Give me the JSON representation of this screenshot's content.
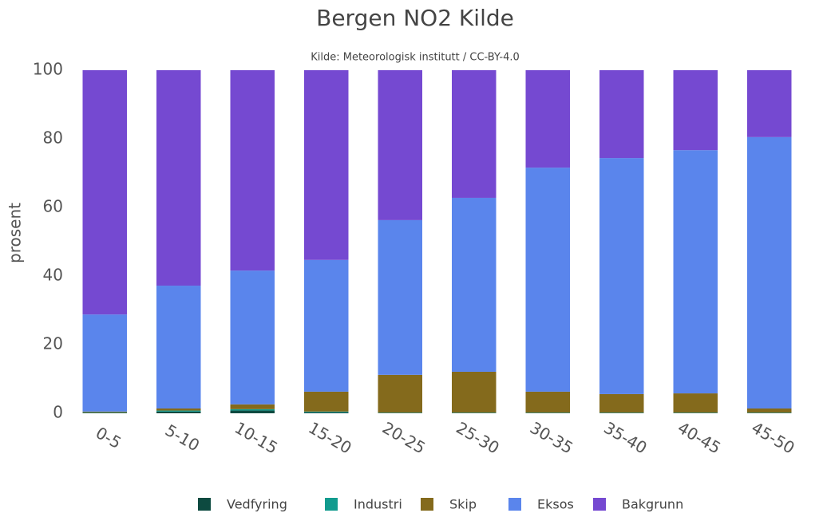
{
  "chart_data": {
    "type": "stacked_bar",
    "title": "Bergen NO2 Kilde",
    "subtitle": "Kilde: Meteorologisk institutt / CC-BY-4.0",
    "ylabel": "prosent",
    "categories": [
      "0-5",
      "5-10",
      "10-15",
      "15-20",
      "20-25",
      "25-30",
      "30-35",
      "35-40",
      "40-45",
      "45-50"
    ],
    "series": [
      {
        "name": "Vedfyring",
        "color": "#0d4a40",
        "values": [
          0.2,
          0.5,
          0.8,
          0.3,
          0.1,
          0.1,
          0.1,
          0.1,
          0.1,
          0.1
        ]
      },
      {
        "name": "Industri",
        "color": "#129b8e",
        "values": [
          0.1,
          0.3,
          0.4,
          0.2,
          0.1,
          0.1,
          0.1,
          0.1,
          0.1,
          0.1
        ]
      },
      {
        "name": "Skip",
        "color": "#846a1c",
        "values": [
          0.2,
          0.6,
          1.4,
          5.8,
          11.0,
          11.9,
          6.1,
          5.4,
          5.6,
          1.2
        ]
      },
      {
        "name": "Eksos",
        "color": "#5a85ec",
        "values": [
          28.3,
          35.8,
          39.0,
          38.4,
          45.1,
          50.7,
          65.3,
          68.8,
          70.9,
          79.1
        ]
      },
      {
        "name": "Bakgrunn",
        "color": "#7549d1",
        "values": [
          71.2,
          62.8,
          58.4,
          55.3,
          43.7,
          37.2,
          28.4,
          25.6,
          23.3,
          19.5
        ]
      }
    ],
    "ylim": [
      0,
      100
    ],
    "yticks": [
      0,
      20,
      40,
      60,
      80,
      100
    ],
    "legend": "bottom"
  }
}
